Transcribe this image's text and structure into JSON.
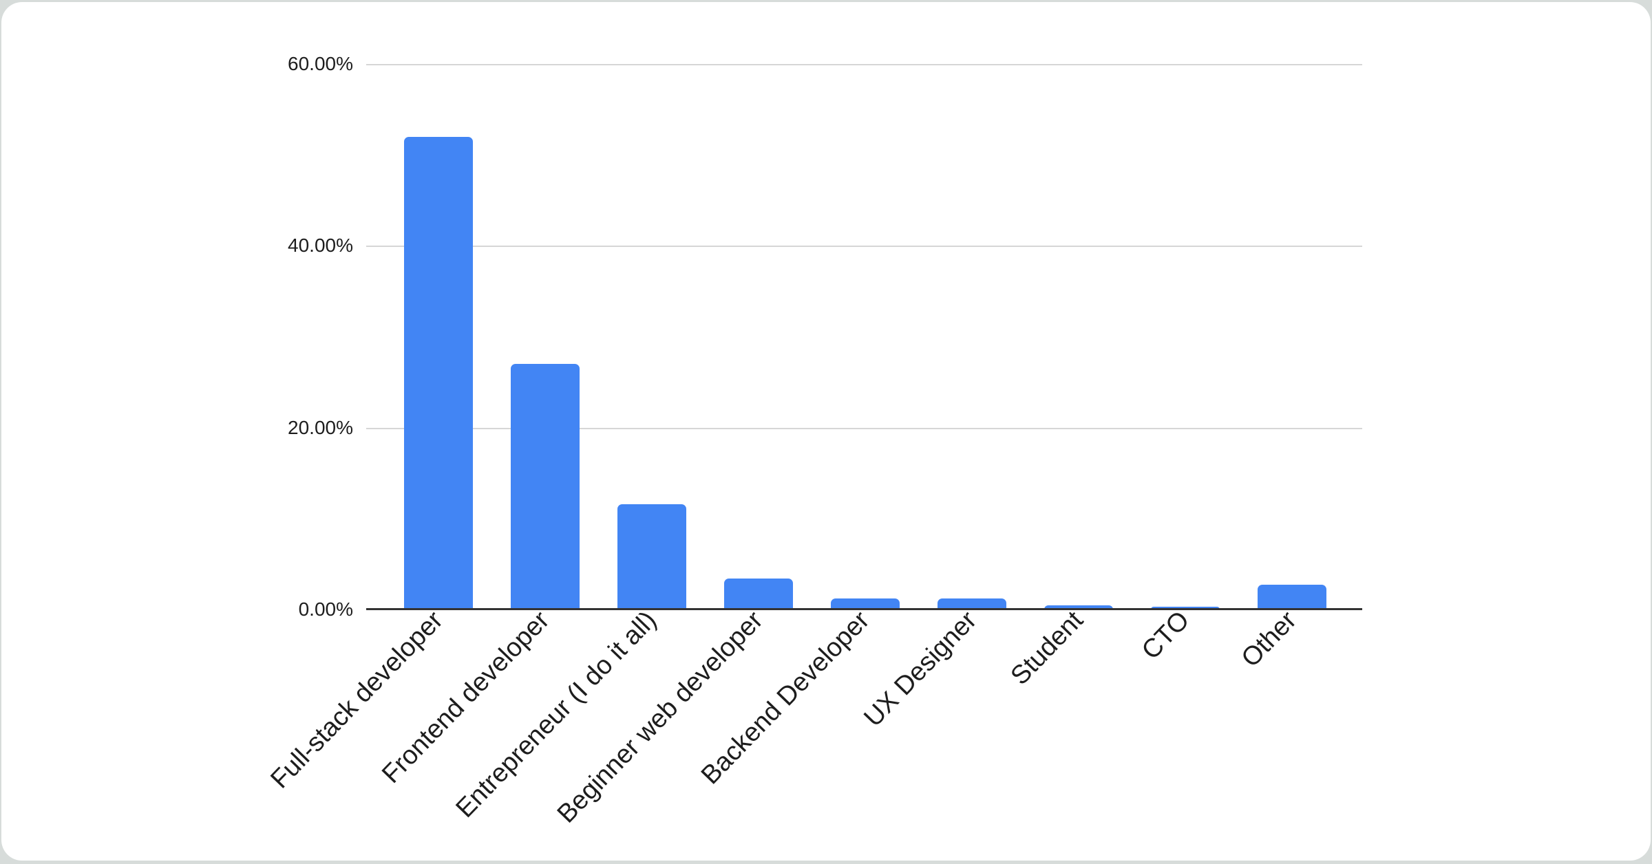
{
  "app": {
    "outer_background": "#d7dcda",
    "card_background": "#ffffff"
  },
  "chart_data": {
    "type": "bar",
    "title": "",
    "xlabel": "",
    "ylabel": "",
    "categories": [
      "Full-stack developer",
      "Frontend developer",
      "Entrepreneur (I do it all)",
      "Beginner web developer",
      "Backend Developer",
      "UX Designer",
      "Student",
      "CTO",
      "Other"
    ],
    "values": [
      52.0,
      27.0,
      11.6,
      3.4,
      1.2,
      1.2,
      0.45,
      0.3,
      2.7
    ],
    "value_unit": "%",
    "ylim": [
      0,
      60
    ],
    "yticks": [
      {
        "value": 60,
        "label": "60.00%"
      },
      {
        "value": 40,
        "label": "40.00%"
      },
      {
        "value": 20,
        "label": "20.00%"
      },
      {
        "value": 0,
        "label": "0.00%"
      }
    ],
    "grid": true,
    "legend_position": "none",
    "bar_color": "#4285F4",
    "gridline_color": "#d6d6d6",
    "axis_line_color": "#333333",
    "label_color": "#1d1d1d"
  }
}
